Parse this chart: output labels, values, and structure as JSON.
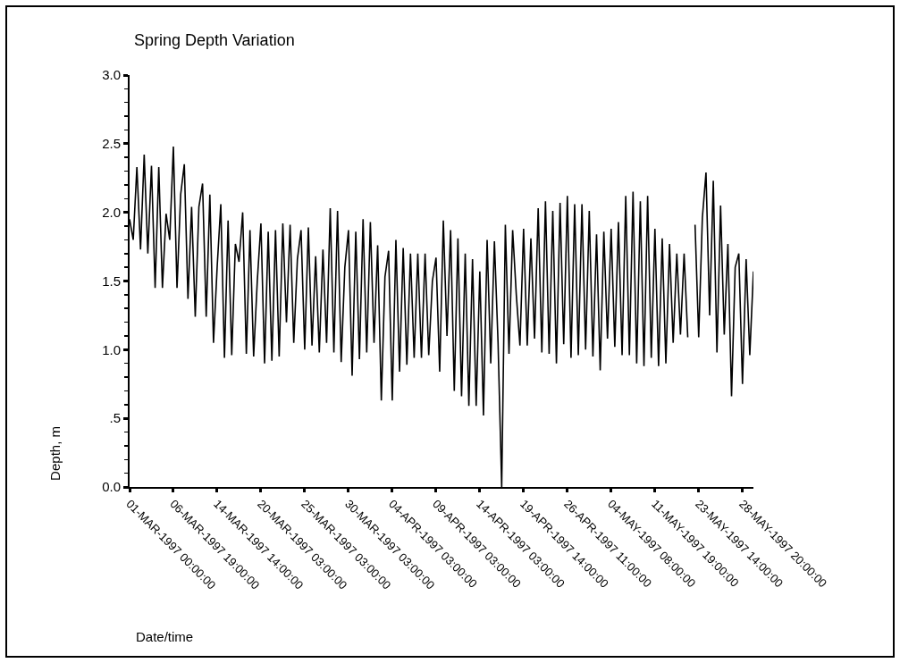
{
  "chart_data": {
    "type": "line",
    "title": "Spring Depth Variation",
    "xlabel": "Date/time",
    "ylabel": "Depth, m",
    "categories": [
      "01-MAR-1997 00:00:00",
      null,
      null,
      null,
      null,
      null,
      null,
      null,
      null,
      null,
      null,
      null,
      "06-MAR-1997 19:00:00",
      null,
      null,
      null,
      null,
      null,
      null,
      null,
      null,
      null,
      null,
      null,
      "14-MAR-1997 14:00:00",
      null,
      null,
      null,
      null,
      null,
      null,
      null,
      null,
      null,
      null,
      null,
      "20-MAR-1997 03:00:00",
      null,
      null,
      null,
      null,
      null,
      null,
      null,
      null,
      null,
      null,
      null,
      "25-MAR-1997 03:00:00",
      null,
      null,
      null,
      null,
      null,
      null,
      null,
      null,
      null,
      null,
      null,
      "30-MAR-1997 03:00:00",
      null,
      null,
      null,
      null,
      null,
      null,
      null,
      null,
      null,
      null,
      null,
      "04-APR-1997 03:00:00",
      null,
      null,
      null,
      null,
      null,
      null,
      null,
      null,
      null,
      null,
      null,
      "09-APR-1997 03:00:00",
      null,
      null,
      null,
      null,
      null,
      null,
      null,
      null,
      null,
      null,
      null,
      "14-APR-1997 03:00:00",
      null,
      null,
      null,
      null,
      null,
      null,
      null,
      null,
      null,
      null,
      null,
      "19-APR-1997 14:00:00",
      null,
      null,
      null,
      null,
      null,
      null,
      null,
      null,
      null,
      null,
      null,
      "26-APR-1997 11:00:00",
      null,
      null,
      null,
      null,
      null,
      null,
      null,
      null,
      null,
      null,
      null,
      "04-MAY-1997 08:00:00",
      null,
      null,
      null,
      null,
      null,
      null,
      null,
      null,
      null,
      null,
      null,
      "11-MAY-1997 19:00:00",
      null,
      null,
      null,
      null,
      null,
      null,
      null,
      null,
      null,
      null,
      null,
      "23-MAY-1997 14:00:00",
      null,
      null,
      null,
      null,
      null,
      null,
      null,
      null,
      null,
      null,
      null,
      "28-MAY-1997 20:00:00",
      null,
      null,
      null
    ],
    "series": [
      {
        "color": "#000000",
        "values": [
          1.95,
          1.8,
          2.33,
          1.73,
          2.42,
          1.7,
          2.34,
          1.45,
          2.33,
          1.45,
          1.99,
          1.8,
          2.48,
          1.45,
          2.13,
          2.35,
          1.37,
          2.04,
          1.24,
          2.04,
          2.21,
          1.24,
          2.13,
          1.05,
          1.6,
          2.06,
          0.94,
          1.94,
          0.96,
          1.77,
          1.64,
          2.0,
          0.97,
          1.87,
          0.95,
          1.5,
          1.92,
          0.9,
          1.86,
          0.92,
          1.87,
          0.95,
          1.92,
          1.2,
          1.91,
          1.05,
          1.66,
          1.87,
          1.0,
          1.89,
          1.03,
          1.68,
          0.98,
          1.73,
          1.05,
          2.03,
          0.98,
          2.01,
          0.91,
          1.6,
          1.87,
          0.81,
          1.86,
          0.93,
          1.95,
          0.98,
          1.93,
          1.05,
          1.76,
          0.63,
          1.53,
          1.72,
          0.63,
          1.8,
          0.84,
          1.74,
          0.89,
          1.7,
          0.94,
          1.7,
          0.94,
          1.7,
          0.96,
          1.5,
          1.67,
          0.84,
          1.94,
          1.1,
          1.87,
          0.7,
          1.81,
          0.66,
          1.7,
          0.59,
          1.66,
          0.59,
          1.57,
          0.52,
          1.8,
          0.9,
          1.79,
          1.05,
          0.0,
          1.91,
          0.97,
          1.87,
          1.4,
          1.03,
          1.88,
          1.03,
          1.81,
          1.08,
          2.03,
          0.98,
          2.08,
          0.97,
          2.01,
          0.9,
          2.07,
          1.04,
          2.12,
          0.94,
          2.06,
          0.96,
          2.06,
          1.0,
          2.01,
          0.95,
          1.84,
          0.85,
          1.86,
          1.08,
          1.88,
          1.02,
          1.93,
          0.96,
          2.12,
          0.96,
          2.15,
          0.9,
          2.08,
          0.88,
          2.12,
          0.94,
          1.88,
          0.88,
          1.81,
          0.9,
          1.77,
          1.05,
          1.7,
          1.11,
          1.7,
          1.09,
          null,
          1.91,
          1.09,
          1.96,
          2.29,
          1.25,
          2.23,
          0.98,
          2.05,
          1.11,
          1.77,
          0.66,
          1.6,
          1.7,
          0.75,
          1.66,
          0.96,
          1.57
        ]
      }
    ],
    "ylim": [
      0,
      3
    ],
    "yticks": [
      {
        "value": 0,
        "label": "0.0"
      },
      {
        "value": 0.1,
        "label": null
      },
      {
        "value": 0.2,
        "label": null
      },
      {
        "value": 0.3,
        "label": null
      },
      {
        "value": 0.4,
        "label": null
      },
      {
        "value": 0.5,
        "label": ".5"
      },
      {
        "value": 0.6,
        "label": null
      },
      {
        "value": 0.7,
        "label": null
      },
      {
        "value": 0.8,
        "label": null
      },
      {
        "value": 0.9,
        "label": null
      },
      {
        "value": 1,
        "label": "1.0"
      },
      {
        "value": 1.1,
        "label": null
      },
      {
        "value": 1.2,
        "label": null
      },
      {
        "value": 1.3,
        "label": null
      },
      {
        "value": 1.4,
        "label": null
      },
      {
        "value": 1.5,
        "label": "1.5"
      },
      {
        "value": 1.6,
        "label": null
      },
      {
        "value": 1.7,
        "label": null
      },
      {
        "value": 1.8,
        "label": null
      },
      {
        "value": 1.9,
        "label": null
      },
      {
        "value": 2,
        "label": "2.0"
      },
      {
        "value": 2.1,
        "label": null
      },
      {
        "value": 2.2,
        "label": null
      },
      {
        "value": 2.3,
        "label": null
      },
      {
        "value": 2.4,
        "label": null
      },
      {
        "value": 2.5,
        "label": "2.5"
      },
      {
        "value": 2.6,
        "label": null
      },
      {
        "value": 2.7,
        "label": null
      },
      {
        "value": 2.8,
        "label": null
      },
      {
        "value": 2.9,
        "label": null
      },
      {
        "value": 3,
        "label": "3.0"
      }
    ],
    "line_style": "solid"
  }
}
